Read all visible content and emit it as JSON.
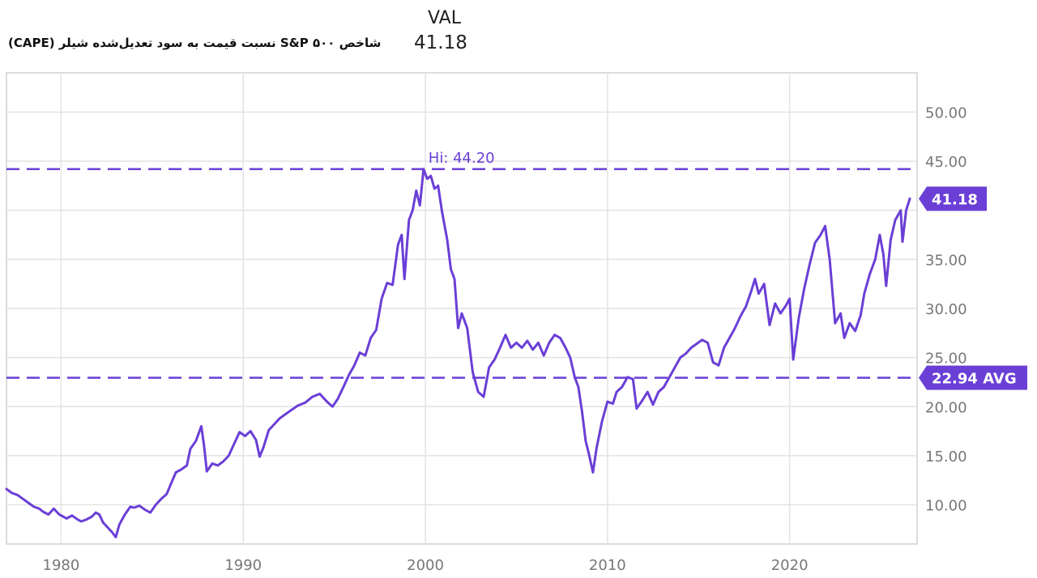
{
  "header": {
    "val_label": "VAL",
    "val": "41.18",
    "series_name": "شاخص S&P ۵۰۰ نسبت قیمت به سود تعدیل‌شده شیلر (CAPE)"
  },
  "chart_data": {
    "type": "line",
    "series": [
      {
        "name": "شاخص S&P ۵۰۰ نسبت قیمت به سود تعدیل‌شده شیلر (CAPE)",
        "color": "#6a3fd6",
        "points": [
          [
            1977.0,
            11.6
          ],
          [
            1977.3,
            11.2
          ],
          [
            1977.6,
            11.0
          ],
          [
            1977.9,
            10.6
          ],
          [
            1978.2,
            10.2
          ],
          [
            1978.5,
            9.8
          ],
          [
            1978.8,
            9.6
          ],
          [
            1979.0,
            9.3
          ],
          [
            1979.3,
            9.0
          ],
          [
            1979.6,
            9.6
          ],
          [
            1979.9,
            9.0
          ],
          [
            1980.1,
            8.8
          ],
          [
            1980.3,
            8.6
          ],
          [
            1980.6,
            8.9
          ],
          [
            1980.9,
            8.5
          ],
          [
            1981.1,
            8.3
          ],
          [
            1981.4,
            8.5
          ],
          [
            1981.7,
            8.8
          ],
          [
            1981.9,
            9.2
          ],
          [
            1982.1,
            9.0
          ],
          [
            1982.3,
            8.2
          ],
          [
            1982.6,
            7.6
          ],
          [
            1982.8,
            7.2
          ],
          [
            1983.0,
            6.7
          ],
          [
            1983.2,
            8.0
          ],
          [
            1983.5,
            9.0
          ],
          [
            1983.8,
            9.8
          ],
          [
            1984.0,
            9.7
          ],
          [
            1984.3,
            9.9
          ],
          [
            1984.6,
            9.5
          ],
          [
            1984.9,
            9.2
          ],
          [
            1985.2,
            10.0
          ],
          [
            1985.5,
            10.6
          ],
          [
            1985.8,
            11.1
          ],
          [
            1986.0,
            12.0
          ],
          [
            1986.3,
            13.3
          ],
          [
            1986.6,
            13.6
          ],
          [
            1986.9,
            14.0
          ],
          [
            1987.1,
            15.7
          ],
          [
            1987.4,
            16.5
          ],
          [
            1987.7,
            18.0
          ],
          [
            1987.85,
            16.0
          ],
          [
            1988.0,
            13.4
          ],
          [
            1988.3,
            14.2
          ],
          [
            1988.6,
            14.0
          ],
          [
            1988.9,
            14.4
          ],
          [
            1989.2,
            15.0
          ],
          [
            1989.5,
            16.2
          ],
          [
            1989.8,
            17.4
          ],
          [
            1990.1,
            17.0
          ],
          [
            1990.4,
            17.5
          ],
          [
            1990.7,
            16.6
          ],
          [
            1990.9,
            14.9
          ],
          [
            1991.1,
            15.8
          ],
          [
            1991.4,
            17.6
          ],
          [
            1991.7,
            18.2
          ],
          [
            1992.0,
            18.8
          ],
          [
            1992.3,
            19.2
          ],
          [
            1992.6,
            19.6
          ],
          [
            1993.0,
            20.1
          ],
          [
            1993.4,
            20.4
          ],
          [
            1993.8,
            21.0
          ],
          [
            1994.2,
            21.3
          ],
          [
            1994.6,
            20.5
          ],
          [
            1994.9,
            20.0
          ],
          [
            1995.2,
            20.8
          ],
          [
            1995.5,
            22.0
          ],
          [
            1995.8,
            23.2
          ],
          [
            1996.1,
            24.2
          ],
          [
            1996.4,
            25.5
          ],
          [
            1996.7,
            25.2
          ],
          [
            1997.0,
            27.0
          ],
          [
            1997.3,
            27.8
          ],
          [
            1997.6,
            31.0
          ],
          [
            1997.9,
            32.6
          ],
          [
            1998.2,
            32.4
          ],
          [
            1998.5,
            36.5
          ],
          [
            1998.7,
            37.5
          ],
          [
            1998.85,
            33.0
          ],
          [
            1999.1,
            39.0
          ],
          [
            1999.3,
            40.0
          ],
          [
            1999.5,
            42.0
          ],
          [
            1999.7,
            40.5
          ],
          [
            1999.9,
            44.2
          ],
          [
            2000.1,
            43.2
          ],
          [
            2000.3,
            43.5
          ],
          [
            2000.5,
            42.2
          ],
          [
            2000.7,
            42.5
          ],
          [
            2000.9,
            40.0
          ],
          [
            2001.2,
            37.0
          ],
          [
            2001.4,
            34.0
          ],
          [
            2001.6,
            33.0
          ],
          [
            2001.8,
            28.0
          ],
          [
            2002.0,
            29.5
          ],
          [
            2002.3,
            28.0
          ],
          [
            2002.6,
            23.5
          ],
          [
            2002.9,
            21.5
          ],
          [
            2003.2,
            21.0
          ],
          [
            2003.5,
            24.0
          ],
          [
            2003.8,
            24.8
          ],
          [
            2004.1,
            26.0
          ],
          [
            2004.4,
            27.3
          ],
          [
            2004.7,
            26.0
          ],
          [
            2005.0,
            26.5
          ],
          [
            2005.3,
            26.0
          ],
          [
            2005.6,
            26.7
          ],
          [
            2005.9,
            25.8
          ],
          [
            2006.2,
            26.5
          ],
          [
            2006.5,
            25.2
          ],
          [
            2006.8,
            26.5
          ],
          [
            2007.1,
            27.3
          ],
          [
            2007.4,
            27.0
          ],
          [
            2007.7,
            26.0
          ],
          [
            2007.95,
            25.0
          ],
          [
            2008.2,
            23.0
          ],
          [
            2008.4,
            22.0
          ],
          [
            2008.6,
            19.5
          ],
          [
            2008.8,
            16.5
          ],
          [
            2009.0,
            15.0
          ],
          [
            2009.2,
            13.3
          ],
          [
            2009.4,
            15.8
          ],
          [
            2009.7,
            18.5
          ],
          [
            2010.0,
            20.5
          ],
          [
            2010.3,
            20.3
          ],
          [
            2010.5,
            21.5
          ],
          [
            2010.8,
            22.0
          ],
          [
            2011.1,
            23.0
          ],
          [
            2011.4,
            22.8
          ],
          [
            2011.6,
            19.8
          ],
          [
            2011.9,
            20.6
          ],
          [
            2012.2,
            21.5
          ],
          [
            2012.5,
            20.2
          ],
          [
            2012.8,
            21.5
          ],
          [
            2013.1,
            22.0
          ],
          [
            2013.4,
            23.0
          ],
          [
            2013.7,
            24.0
          ],
          [
            2014.0,
            25.0
          ],
          [
            2014.3,
            25.4
          ],
          [
            2014.6,
            26.0
          ],
          [
            2014.9,
            26.4
          ],
          [
            2015.2,
            26.8
          ],
          [
            2015.5,
            26.5
          ],
          [
            2015.8,
            24.5
          ],
          [
            2016.1,
            24.2
          ],
          [
            2016.4,
            26.0
          ],
          [
            2016.7,
            27.0
          ],
          [
            2017.0,
            28.0
          ],
          [
            2017.3,
            29.2
          ],
          [
            2017.6,
            30.2
          ],
          [
            2017.9,
            31.8
          ],
          [
            2018.1,
            33.0
          ],
          [
            2018.3,
            31.5
          ],
          [
            2018.6,
            32.5
          ],
          [
            2018.9,
            28.3
          ],
          [
            2019.2,
            30.5
          ],
          [
            2019.5,
            29.5
          ],
          [
            2019.8,
            30.3
          ],
          [
            2020.0,
            31.0
          ],
          [
            2020.2,
            24.8
          ],
          [
            2020.5,
            29.0
          ],
          [
            2020.8,
            32.0
          ],
          [
            2021.1,
            34.5
          ],
          [
            2021.4,
            36.7
          ],
          [
            2021.7,
            37.5
          ],
          [
            2021.95,
            38.4
          ],
          [
            2022.2,
            35.0
          ],
          [
            2022.5,
            28.5
          ],
          [
            2022.8,
            29.5
          ],
          [
            2023.0,
            27.0
          ],
          [
            2023.3,
            28.5
          ],
          [
            2023.6,
            27.7
          ],
          [
            2023.9,
            29.3
          ],
          [
            2024.1,
            31.5
          ],
          [
            2024.4,
            33.5
          ],
          [
            2024.7,
            35.0
          ],
          [
            2024.95,
            37.5
          ],
          [
            2025.15,
            35.5
          ],
          [
            2025.3,
            32.3
          ],
          [
            2025.55,
            37.0
          ],
          [
            2025.8,
            39.0
          ],
          [
            2026.1,
            40.0
          ],
          [
            2026.2,
            36.8
          ],
          [
            2026.4,
            40.0
          ],
          [
            2026.6,
            41.18
          ]
        ]
      }
    ],
    "xlim": [
      1977.0,
      2027.0
    ],
    "ylim": [
      6.0,
      54.0
    ],
    "x_ticks": [
      1980,
      1990,
      2000,
      2010,
      2020
    ],
    "y_ticks": [
      10,
      15,
      20,
      25,
      30,
      35,
      40,
      45,
      50
    ],
    "y_tick_labels": [
      "10.00",
      "15.00",
      "20.00",
      "25.00",
      "30.00",
      "35.00",
      "",
      "45.00",
      "50.00"
    ],
    "grid": true,
    "reference_lines": [
      {
        "value": 44.2,
        "label": "Hi: 44.20",
        "at_x": 1999.9
      },
      {
        "value": 22.94,
        "badge": "22.94 AVG"
      }
    ],
    "last_value_badge": "41.18",
    "last_value": 41.18,
    "colors": {
      "line": "#6a3fd6",
      "badge": "#6a3fd6",
      "grid": "#e3e3e3",
      "axis_text": "#777777"
    }
  }
}
